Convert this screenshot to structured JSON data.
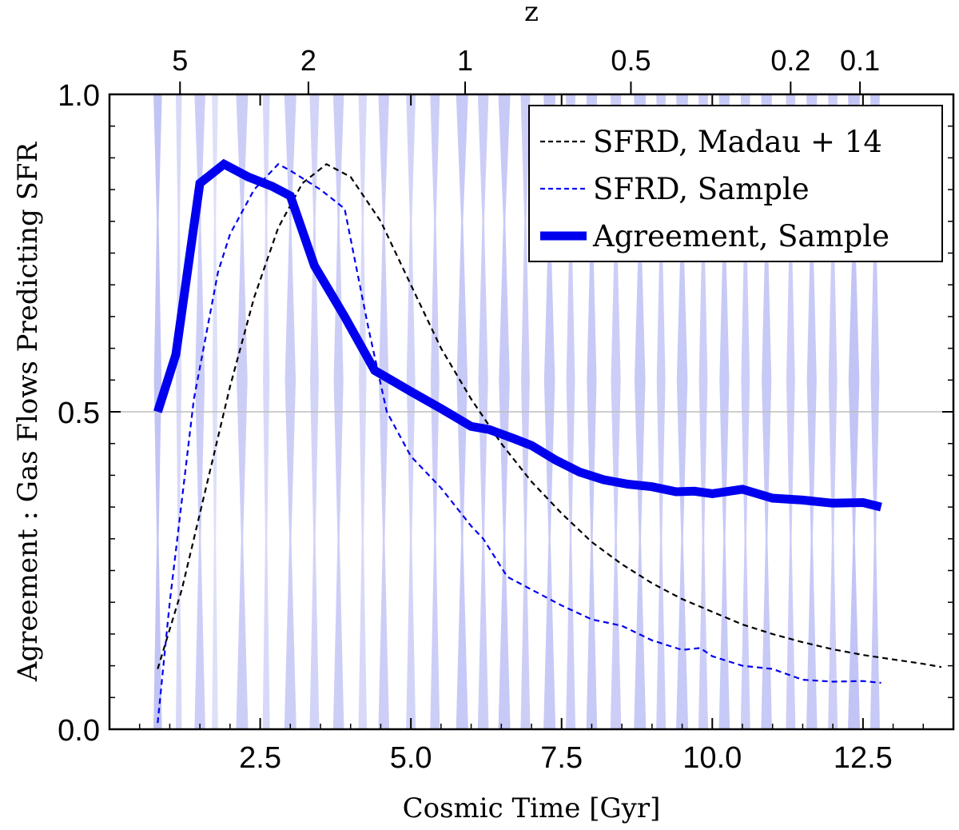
{
  "chart_data": {
    "type": "line",
    "xlabel": "Cosmic Time [Gyr]",
    "ylabel": "Agreement : Gas Flows Predicting SFR",
    "top_xlabel": "z",
    "xlim": [
      0.0,
      14.0
    ],
    "ylim": [
      0.0,
      1.0
    ],
    "x_ticks": [
      2.5,
      5.0,
      7.5,
      10.0,
      12.5
    ],
    "x_tick_labels": [
      "2.5",
      "5.0",
      "7.5",
      "10.0",
      "12.5"
    ],
    "y_ticks": [
      0.0,
      0.5,
      1.0
    ],
    "y_tick_labels": [
      "0.0",
      "0.5",
      "1.0"
    ],
    "top_ticks": [
      {
        "label": "5",
        "time": 1.17
      },
      {
        "label": "2",
        "time": 3.3
      },
      {
        "label": "1",
        "time": 5.9
      },
      {
        "label": "0.5",
        "time": 8.65
      },
      {
        "label": "0.2",
        "time": 11.3
      },
      {
        "label": "0.1",
        "time": 12.45
      }
    ],
    "reference_line": {
      "y": 0.5
    },
    "legend": {
      "position": "top-right",
      "entries": [
        {
          "label": "SFRD, Madau + 14",
          "series": "madau"
        },
        {
          "label": "SFRD, Sample",
          "series": "sfrd_sample"
        },
        {
          "label": "Agreement, Sample",
          "series": "agreement"
        }
      ]
    },
    "series": [
      {
        "name": "SFRD, Madau + 14",
        "key": "madau",
        "color": "#000000",
        "style": "dashed",
        "x": [
          0.8,
          1.2,
          1.6,
          2.0,
          2.4,
          2.8,
          3.2,
          3.6,
          4.0,
          4.5,
          5.0,
          5.5,
          6.0,
          6.5,
          7.0,
          7.5,
          8.0,
          8.5,
          9.0,
          9.5,
          10.0,
          10.5,
          11.0,
          11.5,
          12.0,
          12.5,
          13.0,
          13.5,
          13.8
        ],
        "y": [
          0.095,
          0.22,
          0.38,
          0.54,
          0.68,
          0.79,
          0.86,
          0.89,
          0.87,
          0.8,
          0.7,
          0.6,
          0.52,
          0.45,
          0.39,
          0.34,
          0.295,
          0.26,
          0.23,
          0.205,
          0.185,
          0.165,
          0.15,
          0.137,
          0.126,
          0.117,
          0.11,
          0.103,
          0.098
        ]
      },
      {
        "name": "SFRD, Sample",
        "key": "sfrd_sample",
        "color": "#0000ee",
        "style": "dashed",
        "x": [
          0.8,
          1.0,
          1.4,
          1.8,
          2.0,
          2.4,
          2.8,
          3.0,
          3.5,
          3.9,
          4.3,
          4.6,
          5.0,
          5.5,
          6.0,
          6.2,
          6.6,
          7.0,
          7.5,
          8.0,
          8.5,
          9.0,
          9.5,
          9.8,
          10.0,
          10.5,
          11.0,
          11.5,
          12.0,
          12.5,
          12.8
        ],
        "y": [
          0.01,
          0.2,
          0.52,
          0.72,
          0.78,
          0.85,
          0.89,
          0.88,
          0.85,
          0.82,
          0.63,
          0.5,
          0.43,
          0.38,
          0.32,
          0.3,
          0.24,
          0.22,
          0.195,
          0.173,
          0.163,
          0.14,
          0.125,
          0.128,
          0.115,
          0.1,
          0.095,
          0.078,
          0.075,
          0.076,
          0.073
        ]
      },
      {
        "name": "Agreement, Sample",
        "key": "agreement",
        "color": "#0000ee",
        "style": "solid",
        "x": [
          0.8,
          1.1,
          1.5,
          1.9,
          2.3,
          2.7,
          3.0,
          3.4,
          3.9,
          4.4,
          5.0,
          5.5,
          6.0,
          6.3,
          6.7,
          7.0,
          7.4,
          7.8,
          8.2,
          8.6,
          9.0,
          9.4,
          9.7,
          10.0,
          10.5,
          11.0,
          11.5,
          12.0,
          12.5,
          12.8
        ],
        "y": [
          0.5,
          0.59,
          0.86,
          0.89,
          0.87,
          0.855,
          0.84,
          0.73,
          0.65,
          0.565,
          0.532,
          0.505,
          0.477,
          0.472,
          0.458,
          0.447,
          0.424,
          0.405,
          0.393,
          0.386,
          0.382,
          0.374,
          0.375,
          0.371,
          0.378,
          0.364,
          0.361,
          0.356,
          0.357,
          0.35
        ]
      }
    ],
    "vertical_bands": [
      {
        "x": 0.8,
        "half_width": 0.07,
        "alpha": 0.55
      },
      {
        "x": 1.15,
        "half_width": 0.05,
        "alpha": 0.35
      },
      {
        "x": 1.5,
        "half_width": 0.09,
        "alpha": 0.45
      },
      {
        "x": 1.75,
        "half_width": 0.05,
        "alpha": 0.3
      },
      {
        "x": 2.2,
        "half_width": 0.1,
        "alpha": 0.45
      },
      {
        "x": 2.6,
        "half_width": 0.06,
        "alpha": 0.35
      },
      {
        "x": 3.0,
        "half_width": 0.1,
        "alpha": 0.45
      },
      {
        "x": 3.4,
        "half_width": 0.08,
        "alpha": 0.4
      },
      {
        "x": 3.8,
        "half_width": 0.09,
        "alpha": 0.45
      },
      {
        "x": 4.2,
        "half_width": 0.07,
        "alpha": 0.35
      },
      {
        "x": 4.55,
        "half_width": 0.09,
        "alpha": 0.45
      },
      {
        "x": 5.0,
        "half_width": 0.08,
        "alpha": 0.4
      },
      {
        "x": 5.4,
        "half_width": 0.08,
        "alpha": 0.45
      },
      {
        "x": 5.85,
        "half_width": 0.1,
        "alpha": 0.5
      },
      {
        "x": 6.2,
        "half_width": 0.09,
        "alpha": 0.45
      },
      {
        "x": 6.55,
        "half_width": 0.1,
        "alpha": 0.5
      },
      {
        "x": 6.9,
        "half_width": 0.08,
        "alpha": 0.45
      },
      {
        "x": 7.3,
        "half_width": 0.1,
        "alpha": 0.5
      },
      {
        "x": 7.65,
        "half_width": 0.08,
        "alpha": 0.45
      },
      {
        "x": 8.0,
        "half_width": 0.09,
        "alpha": 0.5
      },
      {
        "x": 8.4,
        "half_width": 0.09,
        "alpha": 0.45
      },
      {
        "x": 8.8,
        "half_width": 0.1,
        "alpha": 0.5
      },
      {
        "x": 9.15,
        "half_width": 0.08,
        "alpha": 0.45
      },
      {
        "x": 9.5,
        "half_width": 0.1,
        "alpha": 0.5
      },
      {
        "x": 9.85,
        "half_width": 0.08,
        "alpha": 0.45
      },
      {
        "x": 10.2,
        "half_width": 0.09,
        "alpha": 0.5
      },
      {
        "x": 10.55,
        "half_width": 0.08,
        "alpha": 0.45
      },
      {
        "x": 10.9,
        "half_width": 0.09,
        "alpha": 0.5
      },
      {
        "x": 11.3,
        "half_width": 0.08,
        "alpha": 0.45
      },
      {
        "x": 11.65,
        "half_width": 0.09,
        "alpha": 0.5
      },
      {
        "x": 12.0,
        "half_width": 0.08,
        "alpha": 0.45
      },
      {
        "x": 12.35,
        "half_width": 0.1,
        "alpha": 0.55
      },
      {
        "x": 12.7,
        "half_width": 0.08,
        "alpha": 0.5
      }
    ],
    "band_color": "#6b6fe6"
  }
}
